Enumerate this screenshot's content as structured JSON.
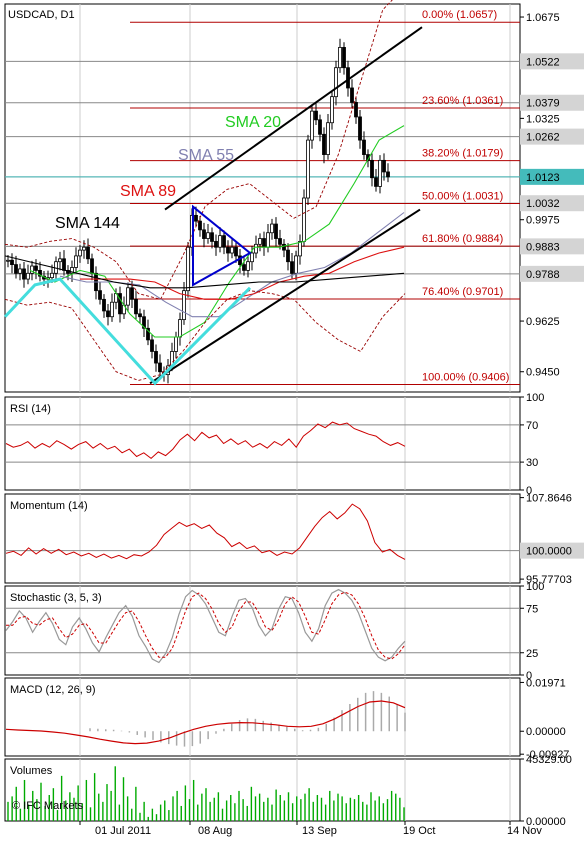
{
  "chart_data": [
    {
      "type": "candlestick",
      "title": "USDCAD, D1",
      "watermark": "© IFC Markets",
      "ylim": [
        0.938,
        1.072
      ],
      "y_ticks": [
        "1.0675",
        "1.0325",
        "0.9975",
        "0.9625",
        "0.9450"
      ],
      "price_boxes": [
        "1.0522",
        "1.0379",
        "1.0262",
        "1.0123",
        "1.0032",
        "0.9883",
        "0.9788"
      ],
      "current_price": "1.0123",
      "fibonacci": [
        {
          "label": "0.00% (1.0657)",
          "value": 1.0657
        },
        {
          "label": "23.60% (1.0361)",
          "value": 1.0361
        },
        {
          "label": "38.20% (1.0179)",
          "value": 1.0179
        },
        {
          "label": "50.00% (1.0031)",
          "value": 1.0031
        },
        {
          "label": "61.80% (0.9884)",
          "value": 0.9884
        },
        {
          "label": "76.40% (0.9701)",
          "value": 0.9701
        },
        {
          "label": "100.00% (0.9406)",
          "value": 0.9406
        }
      ],
      "indicators": [
        {
          "label": "SMA 20",
          "color": "#22cc22"
        },
        {
          "label": "SMA 55",
          "color": "#8080b0"
        },
        {
          "label": "SMA 89",
          "color": "#dd1111"
        },
        {
          "label": "SMA 144",
          "color": "#000000"
        }
      ],
      "closes": [
        0.9835,
        0.982,
        0.979,
        0.9805,
        0.977,
        0.979,
        0.9815,
        0.98,
        0.978,
        0.977,
        0.9775,
        0.979,
        0.983,
        0.984,
        0.98,
        0.979,
        0.981,
        0.985,
        0.987,
        0.988,
        0.984,
        0.979,
        0.973,
        0.97,
        0.966,
        0.964,
        0.969,
        0.972,
        0.965,
        0.968,
        0.974,
        0.97,
        0.965,
        0.964,
        0.96,
        0.956,
        0.952,
        0.948,
        0.945,
        0.944,
        0.947,
        0.952,
        0.957,
        0.963,
        0.973,
        0.988,
        0.999,
        0.997,
        0.994,
        0.991,
        0.993,
        0.99,
        0.988,
        0.992,
        0.988,
        0.986,
        0.988,
        0.985,
        0.982,
        0.98,
        0.983,
        0.986,
        0.989,
        0.991,
        0.988,
        0.993,
        0.996,
        0.991,
        0.989,
        0.987,
        0.983,
        0.979,
        0.985,
        0.99,
        1.005,
        1.025,
        1.035,
        1.032,
        1.027,
        1.02,
        1.031,
        1.04,
        1.05,
        1.057,
        1.05,
        1.043,
        1.038,
        1.033,
        1.025,
        1.02,
        1.018,
        1.012,
        1.009,
        1.018,
        1.014,
        1.0123
      ],
      "series": [
        {
          "name": "SMA 20",
          "values": [
            0.98,
            0.976,
            0.98,
            0.978,
            0.965,
            0.957,
            0.957,
            0.962,
            0.976,
            0.988,
            0.988,
            0.99,
            0.996,
            1.01,
            1.025,
            1.03
          ]
        },
        {
          "name": "SMA 55",
          "values": [
            0.978,
            0.976,
            0.976,
            0.975,
            0.969,
            0.964,
            0.964,
            0.97,
            0.976,
            0.979,
            0.981,
            0.986,
            0.993,
            1.0
          ]
        },
        {
          "name": "SMA 89",
          "values": [
            0.977,
            0.977,
            0.977,
            0.976,
            0.972,
            0.97,
            0.97,
            0.972,
            0.976,
            0.978,
            0.979,
            0.983,
            0.986,
            0.988
          ]
        },
        {
          "name": "SMA 144",
          "values": [
            0.985,
            0.982,
            0.979,
            0.976,
            0.974,
            0.974,
            0.975,
            0.976,
            0.976,
            0.977,
            0.978,
            0.979
          ]
        }
      ]
    },
    {
      "type": "line",
      "title": "RSI (14)",
      "ylim": [
        0,
        100
      ],
      "y_ticks": [
        "100",
        "70",
        "30",
        "0"
      ],
      "values": [
        50,
        46,
        48,
        52,
        45,
        50,
        46,
        53,
        49,
        44,
        49,
        52,
        45,
        50,
        44,
        47,
        40,
        44,
        36,
        40,
        34,
        41,
        37,
        44,
        54,
        60,
        53,
        62,
        56,
        59,
        50,
        55,
        49,
        53,
        46,
        50,
        45,
        52,
        48,
        55,
        46,
        58,
        64,
        71,
        67,
        73,
        70,
        72,
        66,
        63,
        60,
        58,
        52,
        48,
        51,
        47
      ]
    },
    {
      "type": "line",
      "title": "Momentum (14)",
      "ylim": [
        95.2,
        108.4
      ],
      "y_ticks": [
        "107.8646",
        "100.0000",
        "95.77703"
      ],
      "current_value": "100.0000",
      "values": [
        99.6,
        99.9,
        99.3,
        100.4,
        99.5,
        100.3,
        99.6,
        100.2,
        99.4,
        99.8,
        99.2,
        99.6,
        99.0,
        99.5,
        98.9,
        99.3,
        98.8,
        99.4,
        99.2,
        99.8,
        100.8,
        102.4,
        103.3,
        104.2,
        103.6,
        104.0,
        103.3,
        103.8,
        102.6,
        101.9,
        100.6,
        101.2,
        100.3,
        100.7,
        99.7,
        100.0,
        99.3,
        99.8,
        99.5,
        100.4,
        102.0,
        103.6,
        104.9,
        105.8,
        104.7,
        105.6,
        106.9,
        106.2,
        104.4,
        101.2,
        99.8,
        100.2,
        99.3,
        98.7
      ]
    },
    {
      "type": "line",
      "title": "Stochastic (3, 5, 3)",
      "ylim": [
        0,
        100
      ],
      "y_ticks": [
        "100",
        "75",
        "25",
        "0"
      ],
      "series": [
        {
          "name": "%K",
          "values": [
            50,
            60,
            72,
            64,
            48,
            60,
            70,
            58,
            40,
            34,
            54,
            64,
            52,
            36,
            26,
            42,
            56,
            70,
            78,
            66,
            44,
            32,
            18,
            14,
            24,
            42,
            68,
            88,
            95,
            90,
            80,
            64,
            48,
            44,
            66,
            84,
            86,
            76,
            56,
            44,
            52,
            74,
            88,
            86,
            70,
            48,
            38,
            52,
            78,
            92,
            96,
            92,
            84,
            70,
            50,
            30,
            20,
            16,
            20,
            30,
            38
          ]
        },
        {
          "name": "%D",
          "values": [
            56,
            56,
            64,
            66,
            58,
            56,
            62,
            64,
            52,
            42,
            46,
            56,
            58,
            48,
            36,
            36,
            48,
            60,
            70,
            72,
            60,
            44,
            30,
            20,
            20,
            30,
            50,
            72,
            88,
            92,
            86,
            74,
            58,
            48,
            54,
            72,
            82,
            82,
            70,
            54,
            50,
            62,
            80,
            88,
            82,
            66,
            48,
            46,
            62,
            80,
            90,
            93,
            90,
            80,
            64,
            44,
            28,
            20,
            18,
            24,
            34
          ]
        }
      ]
    },
    {
      "type": "bar",
      "title": "MACD (12, 26, 9)",
      "ylim": [
        -0.01,
        0.0215
      ],
      "y_ticks": [
        "0.01971",
        "0.00000",
        "-0.00927"
      ],
      "values": [
        0.0012,
        0.001,
        0.0008,
        0.0006,
        0.0002,
        -0.0005,
        -0.0015,
        -0.0025,
        -0.0035,
        -0.0045,
        -0.0052,
        -0.0058,
        -0.0062,
        -0.006,
        -0.005,
        -0.0032,
        -0.001,
        0.001,
        0.003,
        0.0045,
        0.0052,
        0.005,
        0.0042,
        0.0035,
        0.0026,
        0.0018,
        0.001,
        0.0004,
        0.0006,
        0.0014,
        0.003,
        0.0055,
        0.0085,
        0.011,
        0.0135,
        0.0155,
        0.0162,
        0.0155,
        0.014,
        0.011,
        0.0075
      ],
      "signal": [
        0.0008,
        0.0005,
        0.0003,
        0.0001,
        -0.0003,
        -0.0008,
        -0.0015,
        -0.0023,
        -0.0032,
        -0.004,
        -0.0047,
        -0.005,
        -0.0048,
        -0.004,
        -0.0026,
        -0.0008,
        0.0008,
        0.002,
        0.0028,
        0.0033,
        0.0035,
        0.0034,
        0.003,
        0.0026,
        0.002,
        0.0018,
        0.002,
        0.003,
        0.005,
        0.0075,
        0.01,
        0.0118,
        0.0122,
        0.0115,
        0.0095
      ]
    },
    {
      "type": "bar",
      "title": "Volumes",
      "ylim": [
        0,
        45329
      ],
      "y_ticks": [
        "45329.00",
        "0.00000"
      ],
      "values": [
        14000,
        18000,
        25000,
        9000,
        30000,
        12000,
        22000,
        16000,
        28000,
        11000,
        19000,
        24000,
        8000,
        33000,
        15000,
        21000,
        17000,
        26000,
        13000,
        30000,
        10000,
        35000,
        20000,
        14000,
        27000,
        22000,
        40000,
        12000,
        32000,
        18000,
        9000,
        25000,
        6000,
        14000,
        3000,
        9000,
        5000,
        12000,
        15000,
        8000,
        18000,
        22000,
        11000,
        26000,
        16000,
        30000,
        12000,
        20000,
        24000,
        14000,
        17000,
        21000,
        9000,
        15000,
        19000,
        13000,
        22000,
        16000,
        11000,
        25000,
        18000,
        20000,
        14000,
        17000,
        12000,
        23000,
        19000,
        15000,
        21000,
        13000,
        18000,
        16000,
        20000,
        24000,
        14000,
        19000,
        17000,
        12000,
        22000,
        15000,
        20000,
        18000,
        13000,
        17000,
        16000,
        19000,
        14000,
        12000,
        21000,
        15000,
        18000,
        13000,
        16000,
        22000,
        20000,
        17000,
        10000
      ]
    }
  ],
  "x_ticks": [
    "01 Jul 2011",
    "08 Aug",
    "13 Sep",
    "19 Oct",
    "14 Nov"
  ],
  "colors": {
    "price_line": "#000000",
    "indicator": "#cc0000",
    "volume": "#00aa00",
    "triangle": "#0000cc",
    "channel": "#000000",
    "cyan_line": "#44dddd",
    "current_price_line": "#44bbbb"
  }
}
